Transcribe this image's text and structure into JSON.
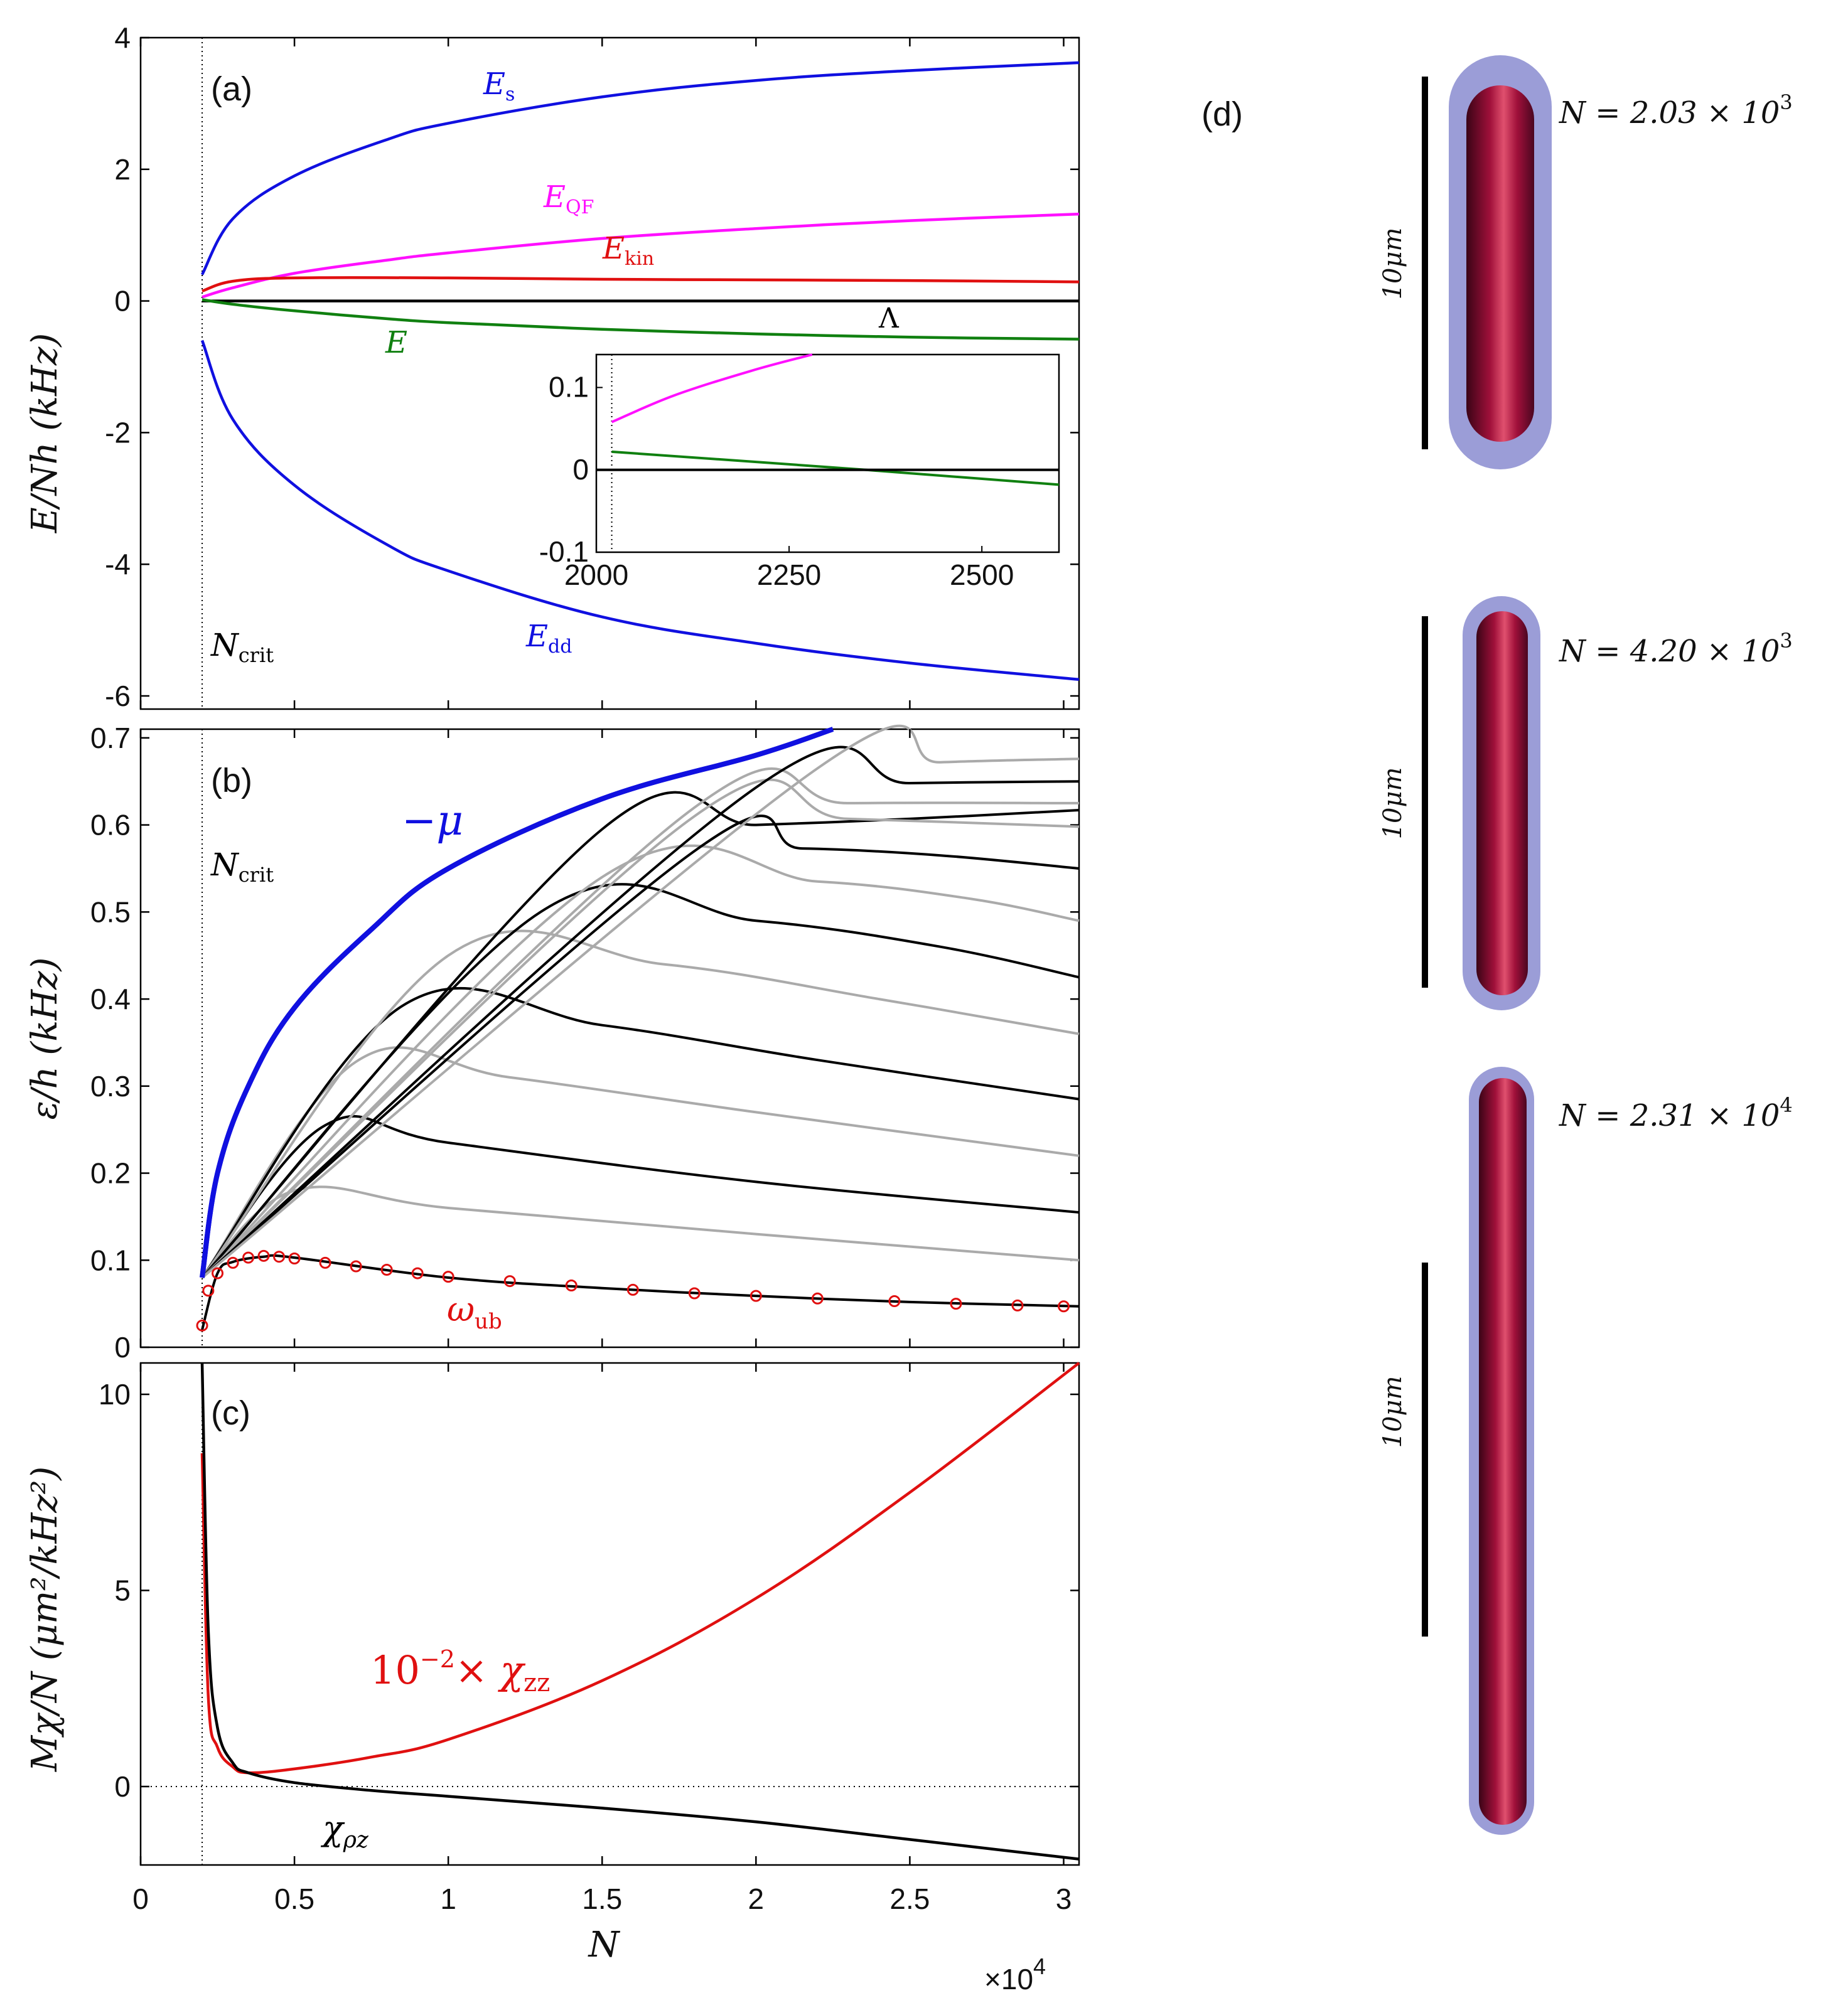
{
  "colors": {
    "blue": "#1010e0",
    "magenta": "#ff10ff",
    "red": "#e01010",
    "green": "#108010",
    "black": "#000000",
    "gray": "#aaaaaa",
    "tube_body": "#a0103a",
    "tube_halo": "#8a8cd0"
  },
  "xaxis": {
    "label": "N",
    "multiplier": "×10",
    "multiplier_exp": "4",
    "ticks": [
      "0",
      "0.5",
      "1",
      "1.5",
      "2",
      "2.5",
      "3"
    ],
    "tick_values": [
      0,
      0.5,
      1,
      1.5,
      2,
      2.5,
      3
    ],
    "range": [
      0,
      3.05
    ]
  },
  "panels": {
    "a": {
      "label": "(a)",
      "ylabel": "E/Nh   (kHz)",
      "yticks": [
        "4",
        "2",
        "0",
        "-2",
        "-4",
        "-6"
      ],
      "ytick_values": [
        4,
        2,
        0,
        -2,
        -4,
        -6
      ],
      "ylim": [
        -6.2,
        4
      ],
      "ncrit_label": "N",
      "ncrit_sub": "crit",
      "curve_labels": {
        "Es": "E",
        "Es_sub": "s",
        "EQF": "E",
        "EQF_sub": "QF",
        "Ekin": "E",
        "Ekin_sub": "kin",
        "E": "E",
        "Lambda": "Λ",
        "Edd": "E",
        "Edd_sub": "dd"
      },
      "inset": {
        "xticks": [
          "2000",
          "2250",
          "2500"
        ],
        "xtick_values": [
          2000,
          2250,
          2500
        ],
        "yticks": [
          "0.1",
          "0",
          "-0.1"
        ],
        "ytick_values": [
          0.1,
          0,
          -0.1
        ],
        "xlim": [
          2000,
          2600
        ],
        "ylim": [
          -0.1,
          0.14
        ]
      }
    },
    "b": {
      "label": "(b)",
      "ylabel": "ε/h   (kHz)",
      "yticks": [
        "0.7",
        "0.6",
        "0.5",
        "0.4",
        "0.3",
        "0.2",
        "0.1",
        "0"
      ],
      "ytick_values": [
        0.7,
        0.6,
        0.5,
        0.4,
        0.3,
        0.2,
        0.1,
        0
      ],
      "ylim": [
        0,
        0.71
      ],
      "ncrit_label": "N",
      "ncrit_sub": "crit",
      "mu_label": "−μ",
      "omega_label": "ω",
      "omega_sub": "ub"
    },
    "c": {
      "label": "(c)",
      "ylabel": "Mχ/N   (μm²/kHz²)",
      "yticks": [
        "10",
        "5",
        "0"
      ],
      "ytick_values": [
        10,
        5,
        0
      ],
      "ylim": [
        -2.0,
        10.8
      ],
      "chizz_label": "10",
      "chizz_exp": "−2",
      "chizz_rest": "× χ",
      "chizz_sub": "zz",
      "chirhoz_label": "χ",
      "chirhoz_sub": "ρz"
    },
    "d": {
      "label": "(d)",
      "scale_label": "10μm",
      "states": [
        {
          "n_text": "N = 2.03 × 10",
          "exp": "3"
        },
        {
          "n_text": "N = 4.20 × 10",
          "exp": "3"
        },
        {
          "n_text": "N = 2.31 × 10",
          "exp": "4"
        }
      ]
    }
  },
  "chart_data": [
    {
      "type": "line",
      "title": "(a)",
      "xlabel": "N (×10^4)",
      "ylabel": "E/Nh (kHz)",
      "xlim": [
        0,
        3.05
      ],
      "ylim": [
        -6.2,
        4
      ],
      "series": [
        {
          "name": "E_s",
          "x": [
            0.2,
            0.3,
            0.5,
            0.8,
            1.0,
            1.5,
            2.0,
            2.5,
            3.05
          ],
          "values": [
            0.4,
            1.25,
            1.9,
            2.45,
            2.7,
            3.1,
            3.35,
            3.5,
            3.62
          ]
        },
        {
          "name": "E_QF",
          "x": [
            0.2,
            0.3,
            0.5,
            0.8,
            1.0,
            1.5,
            2.0,
            2.5,
            3.05
          ],
          "values": [
            0.06,
            0.2,
            0.42,
            0.62,
            0.73,
            0.95,
            1.1,
            1.22,
            1.32
          ]
        },
        {
          "name": "E_kin",
          "x": [
            0.2,
            0.3,
            0.5,
            1.0,
            1.5,
            2.0,
            2.5,
            3.05
          ],
          "values": [
            0.15,
            0.3,
            0.35,
            0.35,
            0.33,
            0.32,
            0.31,
            0.29
          ]
        },
        {
          "name": "Λ",
          "x": [
            0.2,
            3.05
          ],
          "values": [
            0,
            0
          ]
        },
        {
          "name": "E",
          "x": [
            0.2,
            0.3,
            0.5,
            0.8,
            1.0,
            1.5,
            2.0,
            2.5,
            3.05
          ],
          "values": [
            0.02,
            -0.05,
            -0.15,
            -0.27,
            -0.33,
            -0.43,
            -0.5,
            -0.55,
            -0.58
          ]
        },
        {
          "name": "E_dd",
          "x": [
            0.2,
            0.3,
            0.5,
            0.8,
            1.0,
            1.5,
            2.0,
            2.5,
            3.05
          ],
          "values": [
            -0.6,
            -1.8,
            -2.8,
            -3.7,
            -4.1,
            -4.8,
            -5.2,
            -5.5,
            -5.75
          ]
        }
      ],
      "inset": {
        "xlim": [
          2000,
          2600
        ],
        "ylim": [
          -0.1,
          0.14
        ],
        "series": [
          {
            "name": "E_QF",
            "x": [
              2020,
              2100,
              2200,
              2280
            ],
            "values": [
              0.058,
              0.09,
              0.12,
              0.14
            ]
          },
          {
            "name": "E",
            "x": [
              2020,
              2350,
              2600
            ],
            "values": [
              0.022,
              0,
              -0.018
            ]
          },
          {
            "name": "Λ",
            "x": [
              2000,
              2600
            ],
            "values": [
              0,
              0
            ]
          }
        ]
      }
    },
    {
      "type": "line",
      "title": "(b)",
      "xlabel": "N (×10^4)",
      "ylabel": "ε/h (kHz)",
      "xlim": [
        0,
        3.05
      ],
      "ylim": [
        0,
        0.71
      ],
      "series": [
        {
          "name": "-μ",
          "x": [
            0.2,
            0.25,
            0.35,
            0.5,
            0.75,
            1.0,
            1.5,
            2.0,
            2.25
          ],
          "values": [
            0.08,
            0.2,
            0.3,
            0.39,
            0.48,
            0.55,
            0.63,
            0.68,
            0.71
          ]
        },
        {
          "name": "mode-gray-1",
          "x": [
            0.2,
            0.5,
            1.0,
            2.0,
            3.05
          ],
          "values": [
            0.08,
            0.18,
            0.16,
            0.13,
            0.1
          ]
        },
        {
          "name": "mode-black-1",
          "x": [
            0.2,
            0.6,
            1.0,
            2.0,
            3.05
          ],
          "values": [
            0.08,
            0.255,
            0.235,
            0.19,
            0.155
          ]
        },
        {
          "name": "mode-gray-2",
          "x": [
            0.2,
            0.7,
            1.2,
            2.0,
            3.05
          ],
          "values": [
            0.08,
            0.328,
            0.31,
            0.27,
            0.22
          ]
        },
        {
          "name": "mode-black-2",
          "x": [
            0.2,
            0.85,
            1.5,
            2.2,
            3.05
          ],
          "values": [
            0.08,
            0.392,
            0.37,
            0.33,
            0.285
          ]
        },
        {
          "name": "mode-gray-3",
          "x": [
            0.2,
            1.0,
            1.7,
            2.4,
            3.05
          ],
          "values": [
            0.08,
            0.45,
            0.44,
            0.4,
            0.36
          ]
        },
        {
          "name": "mode-black-3",
          "x": [
            0.2,
            1.3,
            2.0,
            2.6,
            3.05
          ],
          "values": [
            0.08,
            0.5,
            0.49,
            0.46,
            0.425
          ]
        },
        {
          "name": "mode-gray-4",
          "x": [
            0.2,
            1.5,
            2.2,
            2.7,
            3.05
          ],
          "values": [
            0.08,
            0.54,
            0.535,
            0.515,
            0.49
          ]
        },
        {
          "name": "mode-black-4",
          "x": [
            0.2,
            1.8,
            2.15,
            2.6,
            3.05
          ],
          "values": [
            0.08,
            0.57,
            0.573,
            0.565,
            0.55
          ]
        },
        {
          "name": "mode-black-5",
          "x": [
            0.2,
            1.5,
            2.0,
            2.5,
            3.05
          ],
          "values": [
            0.08,
            0.595,
            0.6,
            0.607,
            0.617
          ]
        },
        {
          "name": "mode-gray-5",
          "x": [
            0.2,
            1.8,
            2.3,
            3.05
          ],
          "values": [
            0.08,
            0.61,
            0.607,
            0.598
          ]
        },
        {
          "name": "mode-gray-6",
          "x": [
            0.2,
            1.8,
            2.3,
            3.05
          ],
          "values": [
            0.08,
            0.62,
            0.625,
            0.625
          ]
        },
        {
          "name": "mode-black-6",
          "x": [
            0.2,
            2.0,
            2.5,
            3.05
          ],
          "values": [
            0.08,
            0.643,
            0.648,
            0.65
          ]
        },
        {
          "name": "mode-gray-7",
          "x": [
            0.2,
            2.2,
            2.6,
            3.05
          ],
          "values": [
            0.08,
            0.665,
            0.672,
            0.676
          ]
        },
        {
          "name": "ω_ub (line)",
          "x": [
            0.2,
            0.25,
            0.3,
            0.4,
            0.5,
            1.0,
            1.5,
            2.0,
            2.5,
            3.05
          ],
          "values": [
            0.02,
            0.085,
            0.098,
            0.104,
            0.103,
            0.08,
            0.068,
            0.059,
            0.052,
            0.047
          ]
        },
        {
          "name": "ω_ub (points)",
          "x": [
            0.2,
            0.22,
            0.25,
            0.3,
            0.35,
            0.4,
            0.45,
            0.5,
            0.6,
            0.7,
            0.8,
            0.9,
            1.0,
            1.2,
            1.4,
            1.6,
            1.8,
            2.0,
            2.2,
            2.45,
            2.65,
            2.85,
            3.0
          ],
          "values": [
            0.025,
            0.065,
            0.085,
            0.097,
            0.103,
            0.105,
            0.104,
            0.102,
            0.097,
            0.093,
            0.089,
            0.085,
            0.081,
            0.076,
            0.071,
            0.066,
            0.062,
            0.059,
            0.056,
            0.053,
            0.05,
            0.048,
            0.047
          ]
        }
      ]
    },
    {
      "type": "line",
      "title": "(c)",
      "xlabel": "N (×10^4)",
      "ylabel": "Mχ/N (μm²/kHz²)",
      "xlim": [
        0,
        3.05
      ],
      "ylim": [
        -2.0,
        10.8
      ],
      "series": [
        {
          "name": "10^-2 × χ_zz",
          "x": [
            0.2,
            0.22,
            0.25,
            0.3,
            0.35,
            0.5,
            0.75,
            1.0,
            1.5,
            2.0,
            2.5,
            3.05
          ],
          "values": [
            8.5,
            2.3,
            1.0,
            0.5,
            0.35,
            0.45,
            0.75,
            1.2,
            2.7,
            4.8,
            7.5,
            10.9
          ]
        },
        {
          "name": "χ_ρz",
          "x": [
            0.2,
            0.22,
            0.25,
            0.3,
            0.35,
            0.5,
            0.75,
            1.0,
            1.5,
            2.0,
            2.5,
            3.05
          ],
          "values": [
            10.8,
            4.0,
            1.5,
            0.6,
            0.35,
            0.1,
            -0.1,
            -0.25,
            -0.55,
            -0.9,
            -1.35,
            -1.85
          ]
        }
      ]
    }
  ]
}
